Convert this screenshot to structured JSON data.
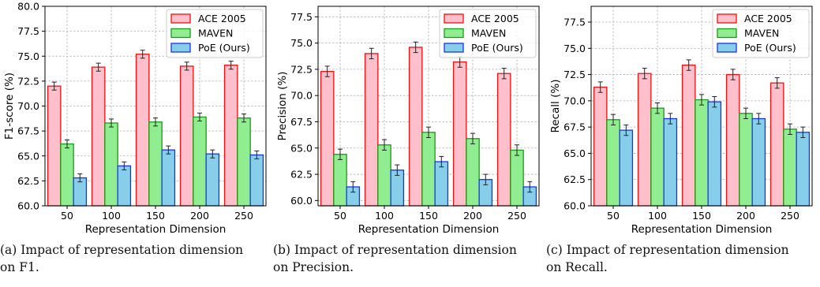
{
  "colors": {
    "ace_fill": "#ffc0cb",
    "ace_stroke": "#ee1111",
    "maven_fill": "#90ee90",
    "maven_stroke": "#1a9a1a",
    "poe_fill": "#87ceeb",
    "poe_stroke": "#1a33ee",
    "grid": "#b0b0b0"
  },
  "chart_data": [
    {
      "type": "bar",
      "xlabel": "Representation Dimension",
      "ylabel": "F1-score (%)",
      "categories": [
        "50",
        "100",
        "150",
        "200",
        "250"
      ],
      "ylim": [
        60.0,
        80.0
      ],
      "yticks": [
        "60.0",
        "62.5",
        "65.0",
        "67.5",
        "70.0",
        "72.5",
        "75.0",
        "77.5",
        "80.0"
      ],
      "grid": true,
      "legend": "top-right",
      "series": [
        {
          "name": "ACE 2005",
          "values": [
            72.0,
            73.9,
            75.2,
            74.0,
            74.1
          ],
          "err": [
            0.4,
            0.4,
            0.4,
            0.4,
            0.4
          ]
        },
        {
          "name": "MAVEN",
          "values": [
            66.2,
            68.3,
            68.4,
            68.9,
            68.8
          ],
          "err": [
            0.4,
            0.4,
            0.4,
            0.4,
            0.4
          ]
        },
        {
          "name": "PoE (Ours)",
          "values": [
            62.8,
            64.0,
            65.6,
            65.2,
            65.1
          ],
          "err": [
            0.4,
            0.4,
            0.4,
            0.4,
            0.4
          ]
        }
      ],
      "caption": "(a) Impact of representation dimension\non F1."
    },
    {
      "type": "bar",
      "xlabel": "Representation Dimension",
      "ylabel": "Precision (%)",
      "categories": [
        "50",
        "100",
        "150",
        "200",
        "250"
      ],
      "ylim": [
        59.5,
        78.5
      ],
      "yticks": [
        "60.0",
        "62.5",
        "65.0",
        "67.5",
        "70.0",
        "72.5",
        "75.0",
        "77.5"
      ],
      "grid": true,
      "legend": "top-right",
      "series": [
        {
          "name": "ACE 2005",
          "values": [
            72.3,
            74.0,
            74.6,
            73.2,
            72.1
          ],
          "err": [
            0.5,
            0.5,
            0.5,
            0.5,
            0.5
          ]
        },
        {
          "name": "MAVEN",
          "values": [
            64.4,
            65.3,
            66.5,
            65.9,
            64.8
          ],
          "err": [
            0.5,
            0.5,
            0.5,
            0.5,
            0.5
          ]
        },
        {
          "name": "PoE (Ours)",
          "values": [
            61.3,
            62.9,
            63.7,
            62.0,
            61.3
          ],
          "err": [
            0.5,
            0.5,
            0.5,
            0.5,
            0.5
          ]
        }
      ],
      "caption": "(b) Impact of representation dimension\non Precision."
    },
    {
      "type": "bar",
      "xlabel": "Representation Dimension",
      "ylabel": "Recall (%)",
      "categories": [
        "50",
        "100",
        "150",
        "200",
        "250"
      ],
      "ylim": [
        60.0,
        79.0
      ],
      "yticks": [
        "60.0",
        "62.5",
        "65.0",
        "67.5",
        "70.0",
        "72.5",
        "75.0",
        "77.5"
      ],
      "grid": true,
      "legend": "top-right",
      "series": [
        {
          "name": "ACE 2005",
          "values": [
            71.3,
            72.6,
            73.4,
            72.5,
            71.7
          ],
          "err": [
            0.5,
            0.5,
            0.5,
            0.5,
            0.5
          ]
        },
        {
          "name": "MAVEN",
          "values": [
            68.2,
            69.3,
            70.1,
            68.8,
            67.3
          ],
          "err": [
            0.5,
            0.5,
            0.5,
            0.5,
            0.5
          ]
        },
        {
          "name": "PoE (Ours)",
          "values": [
            67.2,
            68.3,
            69.9,
            68.3,
            67.0
          ],
          "err": [
            0.5,
            0.5,
            0.5,
            0.5,
            0.5
          ]
        }
      ],
      "caption": "(c) Impact of representation dimension\non Recall."
    }
  ]
}
